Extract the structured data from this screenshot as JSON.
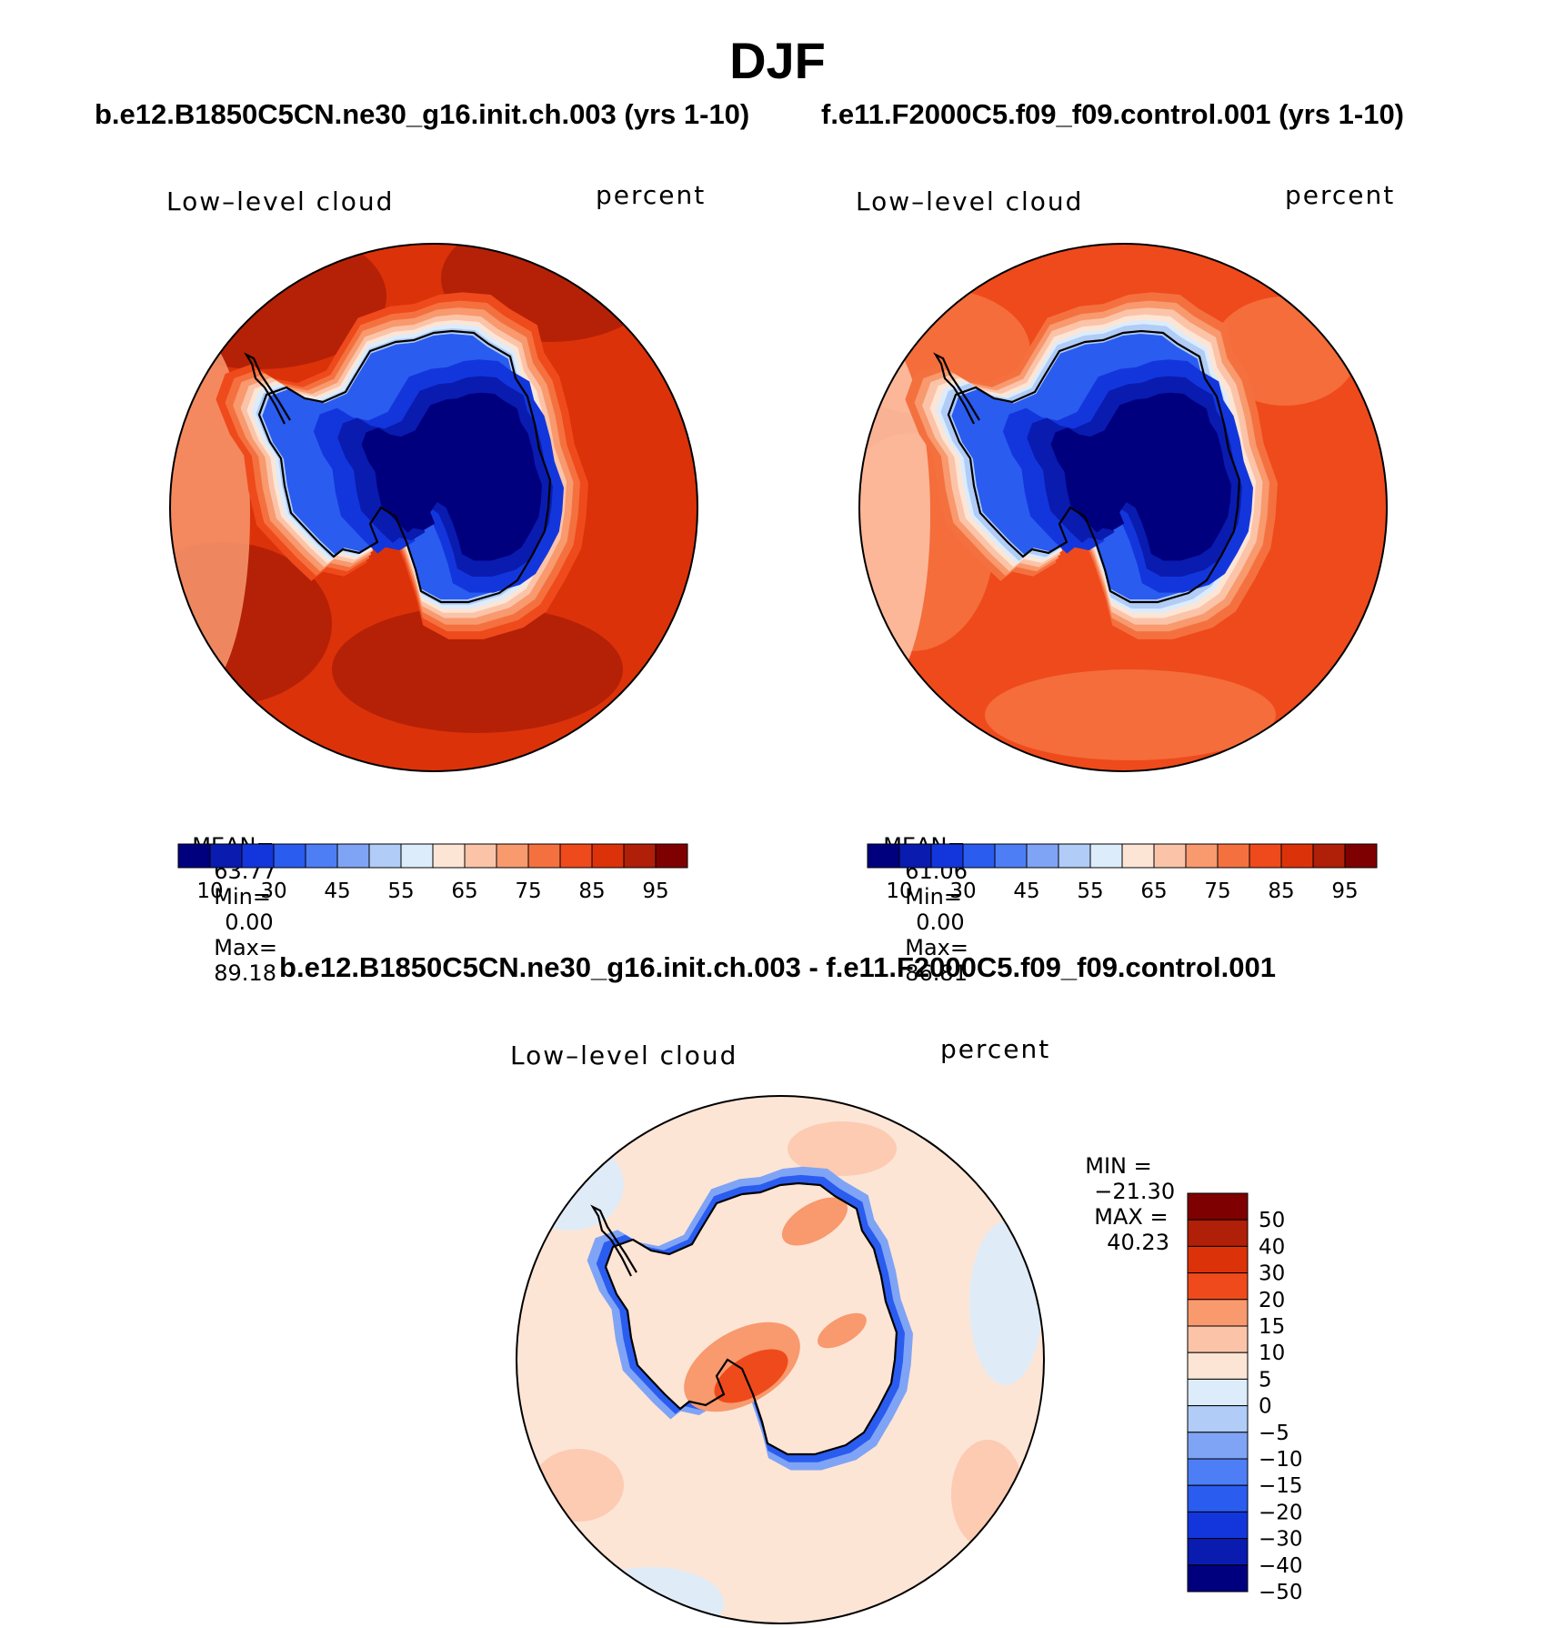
{
  "page_title": "DJF",
  "panels": [
    {
      "case_title": "b.e12.B1850C5CN.ne30_g16.init.ch.003 (yrs 1-10)",
      "variable_label": "Low–level cloud",
      "units_label": "percent",
      "stats": {
        "mean_label": "MEAN=",
        "mean_value": "63.77",
        "min_label": "Min=",
        "min_value": "0.00",
        "max_label": "Max=",
        "max_value": "89.18"
      },
      "colorbar": {
        "tick_labels": [
          "10",
          "30",
          "45",
          "55",
          "65",
          "75",
          "85",
          "95"
        ],
        "colors": [
          "#00007f",
          "#0a1bb0",
          "#1336dc",
          "#2a5cf0",
          "#4d7ef5",
          "#7fa4f5",
          "#b0ccf7",
          "#dcecfb",
          "#fde5d6",
          "#fbc4a9",
          "#f8996e",
          "#f4713f",
          "#ef4a1c",
          "#dc320a",
          "#b01f07",
          "#7f0000"
        ]
      },
      "map": {
        "ocean_class": 13,
        "coast_ring_classes": [
          12,
          11,
          10,
          9,
          8,
          7,
          6
        ],
        "interior_classes": [
          3,
          2,
          1,
          0
        ]
      }
    },
    {
      "case_title": "f.e11.F2000C5.f09_f09.control.001 (yrs 1-10)",
      "variable_label": "Low–level cloud",
      "units_label": "percent",
      "stats": {
        "mean_label": "MEAN=",
        "mean_value": "61.06",
        "min_label": "Min=",
        "min_value": "0.00",
        "max_label": "Max=",
        "max_value": "86.81"
      },
      "colorbar": {
        "tick_labels": [
          "10",
          "30",
          "45",
          "55",
          "65",
          "75",
          "85",
          "95"
        ],
        "colors": [
          "#00007f",
          "#0a1bb0",
          "#1336dc",
          "#2a5cf0",
          "#4d7ef5",
          "#7fa4f5",
          "#b0ccf7",
          "#dcecfb",
          "#fde5d6",
          "#fbc4a9",
          "#f8996e",
          "#f4713f",
          "#ef4a1c",
          "#dc320a",
          "#b01f07",
          "#7f0000"
        ]
      },
      "map": {
        "ocean_class": 12,
        "coast_ring_classes": [
          11,
          10,
          9,
          8,
          7,
          6
        ],
        "interior_classes": [
          3,
          2,
          1,
          0
        ]
      }
    }
  ],
  "difference": {
    "title": "b.e12.B1850C5CN.ne30_g16.init.ch.003 - f.e11.F2000C5.f09_f09.control.001",
    "variable_label": "Low–level cloud",
    "units_label": "percent",
    "stats": {
      "min_label": "MIN =",
      "min_value": "−21.30",
      "max_label": "MAX =",
      "max_value": "40.23"
    },
    "colorbar": {
      "tick_labels": [
        "50",
        "40",
        "30",
        "20",
        "15",
        "10",
        "5",
        "0",
        "−5",
        "−10",
        "−15",
        "−20",
        "−30",
        "−40",
        "−50"
      ],
      "colors": [
        "#7f0000",
        "#b01f07",
        "#dc320a",
        "#ef4a1c",
        "#f8996e",
        "#fbc4a9",
        "#fde5d6",
        "#dcecfb",
        "#b0ccf7",
        "#7fa4f5",
        "#4d7ef5",
        "#2a5cf0",
        "#1336dc",
        "#0a1bb0",
        "#00007f"
      ]
    }
  }
}
